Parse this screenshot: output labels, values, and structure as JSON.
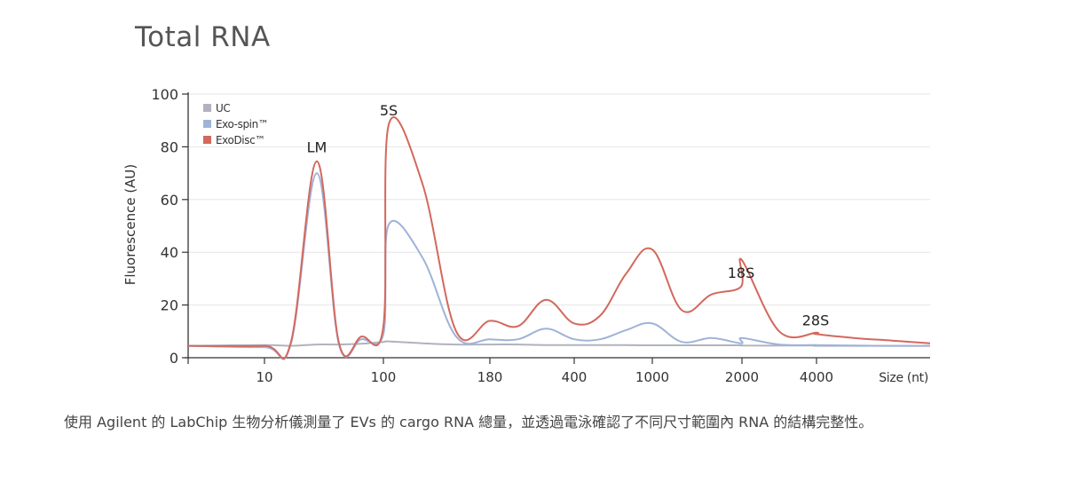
{
  "page": {
    "title": "Total RNA",
    "caption": "使用 Agilent 的 LabChip 生物分析儀測量了 EVs 的 cargo RNA 總量，並透過電泳確認了不同尺寸範圍內 RNA 的結構完整性。"
  },
  "chart_data": {
    "type": "line",
    "title": "",
    "xlabel": "Size (nt)",
    "ylabel": "Fluorescence (AU)",
    "ylim": [
      0,
      100
    ],
    "yticks": [
      0,
      20,
      40,
      60,
      80,
      100
    ],
    "xtick_labels": [
      "10",
      "100",
      "180",
      "400",
      "1000",
      "2000",
      "4000"
    ],
    "grid": "horizontal",
    "legend_position": "top-left",
    "legend": [
      "UC",
      "Exo-spin™",
      "ExoDisc™"
    ],
    "peak_labels": [
      "LM",
      "5S",
      "18S",
      "28S"
    ],
    "x_order": [
      "",
      "10",
      "",
      "LM",
      "",
      "",
      "100",
      "5S",
      "",
      "",
      "180",
      "",
      "",
      "400",
      "",
      "",
      "1000",
      "",
      "",
      "18S",
      "2000",
      "",
      "4000",
      "28S",
      "",
      "",
      "end"
    ],
    "series": [
      {
        "name": "UC",
        "color": "#b0b3bd",
        "points": [
          [
            0,
            4.5
          ],
          [
            1,
            4.8
          ],
          [
            2,
            4.5
          ],
          [
            3,
            5
          ],
          [
            4,
            5
          ],
          [
            5,
            5.3
          ],
          [
            6,
            6
          ],
          [
            7,
            6.2
          ],
          [
            8,
            5.5
          ],
          [
            9,
            5
          ],
          [
            10,
            5
          ],
          [
            11,
            5
          ],
          [
            12,
            4.8
          ],
          [
            13,
            4.8
          ],
          [
            14,
            4.8
          ],
          [
            15,
            4.8
          ],
          [
            16,
            4.7
          ],
          [
            17,
            4.7
          ],
          [
            18,
            4.7
          ],
          [
            19,
            4.7
          ],
          [
            20,
            4.6
          ],
          [
            21,
            4.6
          ],
          [
            22,
            4.6
          ],
          [
            23,
            4.5
          ],
          [
            24,
            4.5
          ],
          [
            25,
            4.5
          ],
          [
            26,
            4.5
          ]
        ]
      },
      {
        "name": "Exo-spin™",
        "color": "#9fb3d8",
        "points": [
          [
            0,
            4.5
          ],
          [
            1,
            4
          ],
          [
            2,
            5
          ],
          [
            3,
            70
          ],
          [
            4,
            5
          ],
          [
            5,
            7
          ],
          [
            6,
            9
          ],
          [
            7,
            50.5
          ],
          [
            8,
            38
          ],
          [
            9,
            8
          ],
          [
            10,
            7
          ],
          [
            11,
            7
          ],
          [
            12,
            11
          ],
          [
            13,
            7
          ],
          [
            14,
            7
          ],
          [
            15,
            10.5
          ],
          [
            16,
            13
          ],
          [
            17,
            6
          ],
          [
            18,
            7.5
          ],
          [
            19,
            5.5
          ],
          [
            20,
            7.5
          ],
          [
            21,
            5
          ],
          [
            22,
            4.8
          ],
          [
            23,
            4.8
          ],
          [
            24,
            4.6
          ],
          [
            25,
            4.5
          ],
          [
            26,
            4.5
          ]
        ]
      },
      {
        "name": "ExoDisc™",
        "color": "#d3685d",
        "points": [
          [
            0,
            4.5
          ],
          [
            1,
            4.5
          ],
          [
            2,
            5.5
          ],
          [
            3,
            74.5
          ],
          [
            4,
            5.5
          ],
          [
            5,
            8
          ],
          [
            6,
            12
          ],
          [
            7,
            88.5
          ],
          [
            8,
            66
          ],
          [
            9,
            10
          ],
          [
            10,
            14
          ],
          [
            11,
            12
          ],
          [
            12,
            22
          ],
          [
            13,
            13
          ],
          [
            14,
            16
          ],
          [
            15,
            32
          ],
          [
            16,
            41
          ],
          [
            17,
            18
          ],
          [
            18,
            24
          ],
          [
            19,
            27
          ],
          [
            20,
            37
          ],
          [
            21,
            10
          ],
          [
            22,
            9.5
          ],
          [
            23,
            9
          ],
          [
            24,
            7.5
          ],
          [
            25,
            6.5
          ],
          [
            26,
            5.5
          ]
        ]
      }
    ]
  }
}
